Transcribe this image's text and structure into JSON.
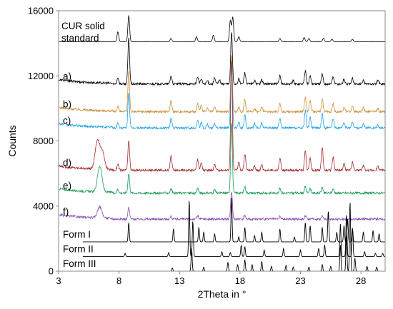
{
  "chart_data": {
    "type": "line",
    "title": "",
    "xlabel": "2Theta in °",
    "ylabel": "Counts",
    "xlim": [
      3,
      30
    ],
    "ylim": [
      0,
      16000
    ],
    "x_ticks": [
      3,
      8,
      13,
      18,
      23,
      28
    ],
    "y_ticks": [
      0,
      4000,
      8000,
      12000,
      16000
    ],
    "grid": false,
    "legend": "none",
    "series": [
      {
        "name": "CUR solid standard",
        "label_lines": [
          "CUR solid",
          "standard"
        ],
        "color": "#000000",
        "baseline": 14100,
        "peaks": [
          [
            7.9,
            600
          ],
          [
            8.8,
            1600
          ],
          [
            12.3,
            200
          ],
          [
            14.4,
            300
          ],
          [
            15.8,
            400
          ],
          [
            17.2,
            1300
          ],
          [
            17.4,
            1500
          ],
          [
            17.9,
            300
          ],
          [
            21.3,
            200
          ],
          [
            23.3,
            250
          ],
          [
            23.7,
            200
          ],
          [
            24.9,
            200
          ],
          [
            25.6,
            150
          ],
          [
            27.3,
            150
          ]
        ]
      },
      {
        "name": "a)",
        "color": "#000000",
        "baseline": 11500,
        "peaks": [
          [
            7.9,
            400
          ],
          [
            8.8,
            2800
          ],
          [
            12.3,
            500
          ],
          [
            14.5,
            450
          ],
          [
            14.8,
            300
          ],
          [
            15.3,
            200
          ],
          [
            15.9,
            350
          ],
          [
            16.3,
            250
          ],
          [
            17.3,
            3200
          ],
          [
            17.9,
            300
          ],
          [
            18.4,
            700
          ],
          [
            19.2,
            200
          ],
          [
            19.8,
            250
          ],
          [
            21.3,
            500
          ],
          [
            22.4,
            200
          ],
          [
            23.4,
            800
          ],
          [
            23.8,
            500
          ],
          [
            24.8,
            600
          ],
          [
            25.7,
            450
          ],
          [
            26.6,
            300
          ],
          [
            27.3,
            350
          ],
          [
            28.2,
            200
          ],
          [
            29.4,
            200
          ]
        ]
      },
      {
        "name": "b)",
        "color": "#c9913c",
        "baseline": 9800,
        "peaks": [
          [
            7.9,
            350
          ],
          [
            8.8,
            2500
          ],
          [
            12.3,
            700
          ],
          [
            14.5,
            500
          ],
          [
            14.8,
            350
          ],
          [
            15.3,
            200
          ],
          [
            15.9,
            300
          ],
          [
            17.3,
            3500
          ],
          [
            17.9,
            300
          ],
          [
            18.4,
            700
          ],
          [
            19.2,
            200
          ],
          [
            19.8,
            300
          ],
          [
            21.3,
            500
          ],
          [
            23.4,
            900
          ],
          [
            23.8,
            700
          ],
          [
            24.8,
            800
          ],
          [
            25.7,
            500
          ],
          [
            26.6,
            300
          ],
          [
            27.3,
            350
          ],
          [
            28.2,
            250
          ],
          [
            29.4,
            200
          ]
        ]
      },
      {
        "name": "c)",
        "color": "#1ea0e6",
        "baseline": 8800,
        "peaks": [
          [
            7.9,
            300
          ],
          [
            8.8,
            2200
          ],
          [
            12.3,
            600
          ],
          [
            14.5,
            500
          ],
          [
            14.8,
            350
          ],
          [
            15.3,
            250
          ],
          [
            15.9,
            300
          ],
          [
            17.3,
            4200
          ],
          [
            17.9,
            350
          ],
          [
            18.4,
            800
          ],
          [
            19.2,
            250
          ],
          [
            19.8,
            300
          ],
          [
            21.3,
            550
          ],
          [
            23.4,
            1100
          ],
          [
            23.8,
            700
          ],
          [
            24.8,
            900
          ],
          [
            25.7,
            550
          ],
          [
            26.6,
            350
          ],
          [
            27.3,
            400
          ],
          [
            28.2,
            250
          ],
          [
            29.4,
            200
          ]
        ]
      },
      {
        "name": "d)",
        "color": "#a52a2a",
        "baseline": 6200,
        "peaks": [
          [
            6.2,
            1700
          ],
          [
            6.6,
            1100
          ],
          [
            7.9,
            400
          ],
          [
            8.8,
            1800
          ],
          [
            12.3,
            900
          ],
          [
            14.5,
            700
          ],
          [
            14.8,
            450
          ],
          [
            15.9,
            350
          ],
          [
            17.3,
            6800
          ],
          [
            17.9,
            450
          ],
          [
            18.4,
            1000
          ],
          [
            19.2,
            250
          ],
          [
            19.8,
            350
          ],
          [
            21.3,
            750
          ],
          [
            23.4,
            1200
          ],
          [
            23.8,
            800
          ],
          [
            24.8,
            1400
          ],
          [
            25.7,
            800
          ],
          [
            26.6,
            400
          ],
          [
            27.3,
            500
          ],
          [
            28.2,
            300
          ],
          [
            29.4,
            250
          ]
        ]
      },
      {
        "name": "e)",
        "color": "#1a9a58",
        "baseline": 4800,
        "peaks": [
          [
            6.4,
            1600
          ],
          [
            7.9,
            250
          ],
          [
            8.8,
            1200
          ],
          [
            12.3,
            250
          ],
          [
            14.5,
            300
          ],
          [
            15.9,
            200
          ],
          [
            17.3,
            4400
          ],
          [
            18.4,
            400
          ],
          [
            21.3,
            300
          ],
          [
            23.4,
            400
          ],
          [
            23.8,
            300
          ],
          [
            24.8,
            350
          ],
          [
            25.7,
            250
          ]
        ]
      },
      {
        "name": "f)",
        "color": "#8a4fb8",
        "baseline": 3200,
        "peaks": [
          [
            6.4,
            700
          ],
          [
            8.8,
            700
          ],
          [
            12.3,
            150
          ],
          [
            14.5,
            200
          ],
          [
            17.3,
            1700
          ],
          [
            18.4,
            250
          ],
          [
            21.3,
            150
          ],
          [
            23.4,
            200
          ],
          [
            24.8,
            200
          ]
        ]
      },
      {
        "name": "Form I",
        "color": "#000000",
        "baseline": 1800,
        "peaks": [
          [
            8.8,
            1200
          ],
          [
            12.5,
            800
          ],
          [
            14.6,
            900
          ],
          [
            15.0,
            600
          ],
          [
            15.9,
            500
          ],
          [
            17.3,
            2700
          ],
          [
            17.9,
            300
          ],
          [
            18.4,
            900
          ],
          [
            19.2,
            400
          ],
          [
            19.8,
            600
          ],
          [
            21.3,
            800
          ],
          [
            22.5,
            300
          ],
          [
            23.4,
            1200
          ],
          [
            23.8,
            1000
          ],
          [
            24.8,
            900
          ],
          [
            25.3,
            1900
          ],
          [
            26.0,
            600
          ],
          [
            26.6,
            1000
          ],
          [
            26.9,
            1400
          ],
          [
            27.3,
            800
          ],
          [
            28.2,
            600
          ],
          [
            29.0,
            700
          ],
          [
            29.5,
            500
          ]
        ]
      },
      {
        "name": "Form II",
        "color": "#000000",
        "baseline": 900,
        "peaks": [
          [
            8.5,
            200
          ],
          [
            12.1,
            250
          ],
          [
            13.8,
            3500
          ],
          [
            14.1,
            2200
          ],
          [
            16.5,
            300
          ],
          [
            17.2,
            250
          ],
          [
            18.1,
            700
          ],
          [
            18.4,
            600
          ],
          [
            20.0,
            400
          ],
          [
            21.6,
            500
          ],
          [
            23.0,
            400
          ],
          [
            24.5,
            500
          ],
          [
            25.0,
            700
          ],
          [
            26.3,
            2000
          ],
          [
            26.8,
            2600
          ],
          [
            27.3,
            1800
          ],
          [
            28.3,
            300
          ],
          [
            29.2,
            200
          ],
          [
            29.8,
            200
          ]
        ]
      },
      {
        "name": "Form III",
        "color": "#000000",
        "baseline": 0,
        "peaks": [
          [
            12.4,
            200
          ],
          [
            14.0,
            1400
          ],
          [
            15.0,
            250
          ],
          [
            17.0,
            550
          ],
          [
            17.8,
            400
          ],
          [
            18.4,
            700
          ],
          [
            19.0,
            400
          ],
          [
            19.8,
            600
          ],
          [
            20.6,
            300
          ],
          [
            21.8,
            350
          ],
          [
            22.4,
            250
          ],
          [
            23.7,
            250
          ],
          [
            24.8,
            400
          ],
          [
            25.5,
            300
          ],
          [
            26.3,
            1600
          ],
          [
            26.8,
            2200
          ],
          [
            27.1,
            4300
          ],
          [
            27.5,
            800
          ],
          [
            28.5,
            300
          ],
          [
            29.3,
            250
          ]
        ]
      }
    ]
  }
}
